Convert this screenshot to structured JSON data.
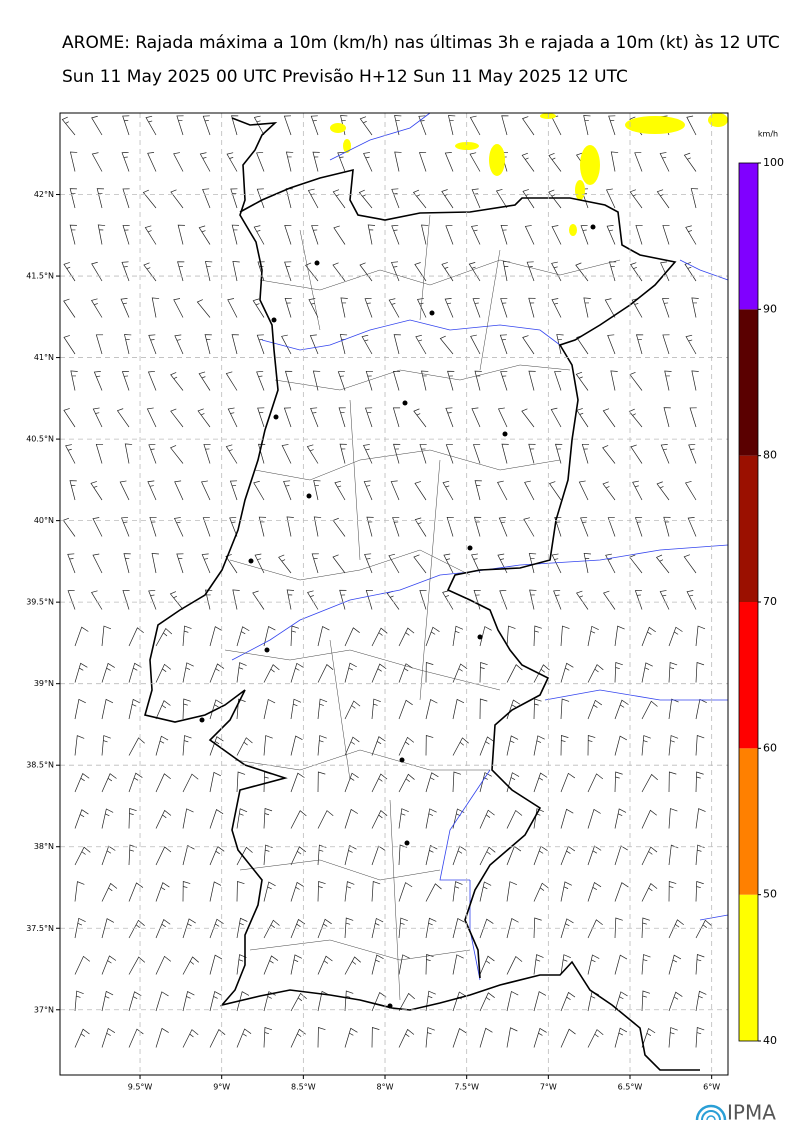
{
  "header": {
    "title": "AROME: Rajada máxima a 10m (km/h) nas últimas 3h e rajada a 10m (kt) às 12 UTC",
    "subtitle": "Sun 11 May 2025 00 UTC Previsão H+12 Sun 11 May 2025 12 UTC"
  },
  "map": {
    "lonlim": [
      -9.99,
      -5.9
    ],
    "latlim": [
      36.6,
      42.5
    ],
    "lon_ticks": [
      {
        "value": -9.5,
        "label": "9.5°W"
      },
      {
        "value": -9,
        "label": "9°W"
      },
      {
        "value": -8.5,
        "label": "8.5°W"
      },
      {
        "value": -8,
        "label": "8°W"
      },
      {
        "value": -7.5,
        "label": "7.5°W"
      },
      {
        "value": -7,
        "label": "7°W"
      },
      {
        "value": -6.5,
        "label": "6.5°W"
      },
      {
        "value": -6,
        "label": "6°W"
      }
    ],
    "lat_ticks": [
      {
        "value": 42,
        "label": "42°N"
      },
      {
        "value": 41.5,
        "label": "41.5°N"
      },
      {
        "value": 41,
        "label": "41°N"
      },
      {
        "value": 40.5,
        "label": "40.5°N"
      },
      {
        "value": 40,
        "label": "40°N"
      },
      {
        "value": 39.5,
        "label": "39.5°N"
      },
      {
        "value": 39,
        "label": "39°N"
      },
      {
        "value": 38.5,
        "label": "38.5°N"
      },
      {
        "value": 38,
        "label": "38°N"
      },
      {
        "value": 37.5,
        "label": "37.5°N"
      },
      {
        "value": 37,
        "label": "37°N"
      }
    ]
  },
  "colorbar": {
    "unit": "km/h",
    "lim": [
      40,
      100
    ],
    "ticks": [
      40,
      50,
      60,
      70,
      80,
      90,
      100
    ],
    "colors": [
      "#ffff00",
      "#ff8000",
      "#ff0000",
      "#9b1000",
      "#5a0000",
      "#8000ff"
    ]
  },
  "logo": "IPMA"
}
